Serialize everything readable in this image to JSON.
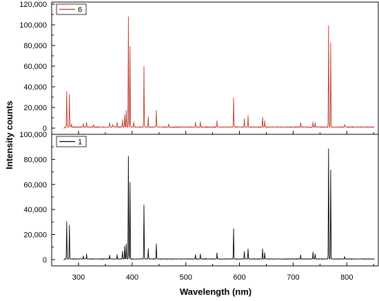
{
  "chart_data": {
    "type": "line",
    "xlabel": "Wavelength (nm)",
    "ylabel": "Intensity counts",
    "xlim": [
      250,
      860
    ],
    "x_ticks": [
      300,
      400,
      500,
      600,
      700,
      800
    ],
    "x_tick_labels": [
      "300",
      "400",
      "500",
      "600",
      "700",
      "800"
    ],
    "panels": [
      {
        "name": "6",
        "color": "#c0392b",
        "ylim": [
          -6000,
          122000
        ],
        "y_ticks": [
          0,
          20000,
          40000,
          60000,
          80000,
          100000,
          120000
        ],
        "y_tick_labels": [
          "0",
          "20,000",
          "40,000",
          "60,000",
          "80,000",
          "100,000",
          "120,000"
        ],
        "baseline": 1000,
        "peaks": [
          {
            "x": 278,
            "y": 35000
          },
          {
            "x": 283,
            "y": 32000
          },
          {
            "x": 287,
            "y": 3000
          },
          {
            "x": 309,
            "y": 3000
          },
          {
            "x": 315,
            "y": 5000
          },
          {
            "x": 328,
            "y": 2500
          },
          {
            "x": 358,
            "y": 4000
          },
          {
            "x": 364,
            "y": 3000
          },
          {
            "x": 372,
            "y": 4500
          },
          {
            "x": 382,
            "y": 7000
          },
          {
            "x": 386,
            "y": 12000
          },
          {
            "x": 389,
            "y": 16000
          },
          {
            "x": 393,
            "y": 107000
          },
          {
            "x": 396,
            "y": 78000
          },
          {
            "x": 403,
            "y": 5000
          },
          {
            "x": 422,
            "y": 59000
          },
          {
            "x": 430,
            "y": 10000
          },
          {
            "x": 445,
            "y": 16000
          },
          {
            "x": 468,
            "y": 3000
          },
          {
            "x": 518,
            "y": 4500
          },
          {
            "x": 527,
            "y": 5000
          },
          {
            "x": 558,
            "y": 6000
          },
          {
            "x": 589,
            "y": 28000
          },
          {
            "x": 609,
            "y": 8000
          },
          {
            "x": 616,
            "y": 11000
          },
          {
            "x": 643,
            "y": 10000
          },
          {
            "x": 647,
            "y": 6000
          },
          {
            "x": 714,
            "y": 4000
          },
          {
            "x": 737,
            "y": 5000
          },
          {
            "x": 741,
            "y": 4000
          },
          {
            "x": 766,
            "y": 98000
          },
          {
            "x": 770,
            "y": 82000
          },
          {
            "x": 796,
            "y": 2500
          }
        ]
      },
      {
        "name": "1",
        "color": "#000000",
        "ylim": [
          -5000,
          100000
        ],
        "y_ticks": [
          0,
          20000,
          40000,
          60000,
          80000,
          100000
        ],
        "y_tick_labels": [
          "0",
          "20,000",
          "40,000",
          "60,000",
          "80,000",
          "100,000"
        ],
        "baseline": 500,
        "peaks": [
          {
            "x": 278,
            "y": 30000
          },
          {
            "x": 283,
            "y": 27000
          },
          {
            "x": 309,
            "y": 2500
          },
          {
            "x": 315,
            "y": 4000
          },
          {
            "x": 358,
            "y": 3000
          },
          {
            "x": 372,
            "y": 3500
          },
          {
            "x": 382,
            "y": 6000
          },
          {
            "x": 386,
            "y": 10000
          },
          {
            "x": 389,
            "y": 12000
          },
          {
            "x": 393,
            "y": 82000
          },
          {
            "x": 396,
            "y": 61000
          },
          {
            "x": 422,
            "y": 43000
          },
          {
            "x": 430,
            "y": 8000
          },
          {
            "x": 445,
            "y": 12000
          },
          {
            "x": 518,
            "y": 3500
          },
          {
            "x": 527,
            "y": 4000
          },
          {
            "x": 558,
            "y": 5000
          },
          {
            "x": 589,
            "y": 24000
          },
          {
            "x": 609,
            "y": 6000
          },
          {
            "x": 616,
            "y": 8000
          },
          {
            "x": 643,
            "y": 8000
          },
          {
            "x": 647,
            "y": 5000
          },
          {
            "x": 714,
            "y": 3000
          },
          {
            "x": 737,
            "y": 5500
          },
          {
            "x": 741,
            "y": 4000
          },
          {
            "x": 766,
            "y": 88000
          },
          {
            "x": 770,
            "y": 71000
          },
          {
            "x": 796,
            "y": 2000
          }
        ]
      }
    ],
    "legend_position": "top-left"
  }
}
